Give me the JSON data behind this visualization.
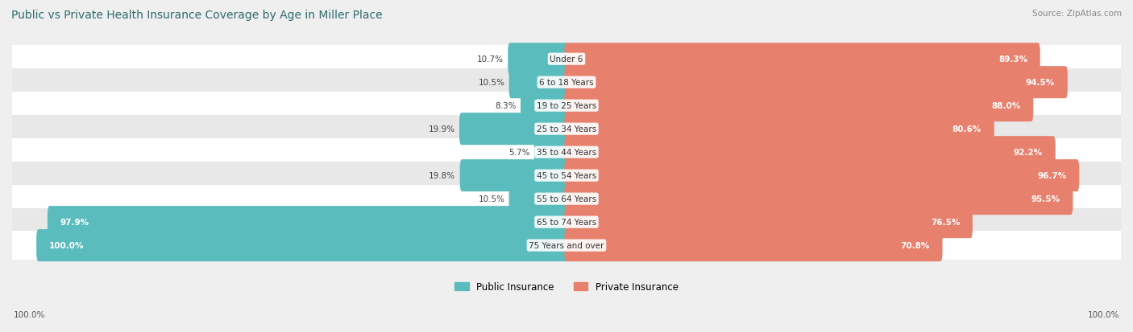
{
  "title": "Public vs Private Health Insurance Coverage by Age in Miller Place",
  "source": "Source: ZipAtlas.com",
  "categories": [
    "Under 6",
    "6 to 18 Years",
    "19 to 25 Years",
    "25 to 34 Years",
    "35 to 44 Years",
    "45 to 54 Years",
    "55 to 64 Years",
    "65 to 74 Years",
    "75 Years and over"
  ],
  "public_values": [
    10.7,
    10.5,
    8.3,
    19.9,
    5.7,
    19.8,
    10.5,
    97.9,
    100.0
  ],
  "private_values": [
    89.3,
    94.5,
    88.0,
    80.6,
    92.2,
    96.7,
    95.5,
    76.5,
    70.8
  ],
  "public_color": "#5bbcbe",
  "private_color": "#e8806e",
  "bg_color": "#efefef",
  "row_color_even": "#ffffff",
  "row_color_odd": "#e8e8e8",
  "title_color": "#2d6b6b",
  "bar_height": 0.58,
  "legend_public": "Public Insurance",
  "legend_private": "Private Insurance",
  "xlim": 105
}
